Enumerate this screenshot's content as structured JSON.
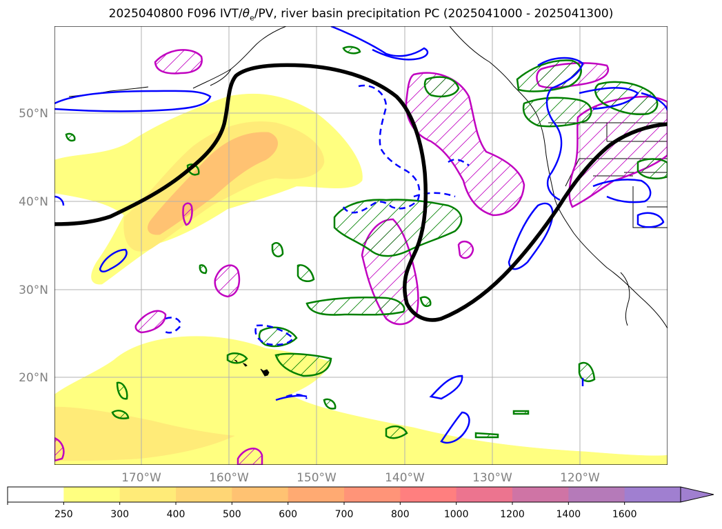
{
  "title": {
    "prefix": "2025040800 F096 IVT/",
    "theta": "θ",
    "subscript": "e",
    "suffix": "/PV, river basin precipitation PC (2025041000 - 2025041300)"
  },
  "axes": {
    "lat_labels": [
      "50°N",
      "40°N",
      "30°N",
      "20°N"
    ],
    "lon_labels": [
      "170°W",
      "160°W",
      "150°W",
      "140°W",
      "130°W",
      "120°W"
    ],
    "grid": true,
    "label_color": "#808080"
  },
  "colorbar": {
    "ticks": [
      "250",
      "300",
      "400",
      "500",
      "600",
      "700",
      "800",
      "1000",
      "1200",
      "1400",
      "1600"
    ],
    "colors": [
      "#ffffff",
      "#ffff80",
      "#ffeb78",
      "#ffd675",
      "#ffc272",
      "#ffaa72",
      "#ff9478",
      "#ff7f7f",
      "#ec748f",
      "#cf74a5",
      "#b57ab9",
      "#a07fd0"
    ],
    "extend": "max"
  },
  "legend_colors": {
    "ivt_fill_low": "#ffff80",
    "ivt_fill_high": "#ffc272",
    "theta_e_contour": "#000000",
    "pv_contour": "#0000ff",
    "precip_pc_positive": "#008000",
    "precip_pc_negative": "#c000c0",
    "coastline": "#000000"
  }
}
